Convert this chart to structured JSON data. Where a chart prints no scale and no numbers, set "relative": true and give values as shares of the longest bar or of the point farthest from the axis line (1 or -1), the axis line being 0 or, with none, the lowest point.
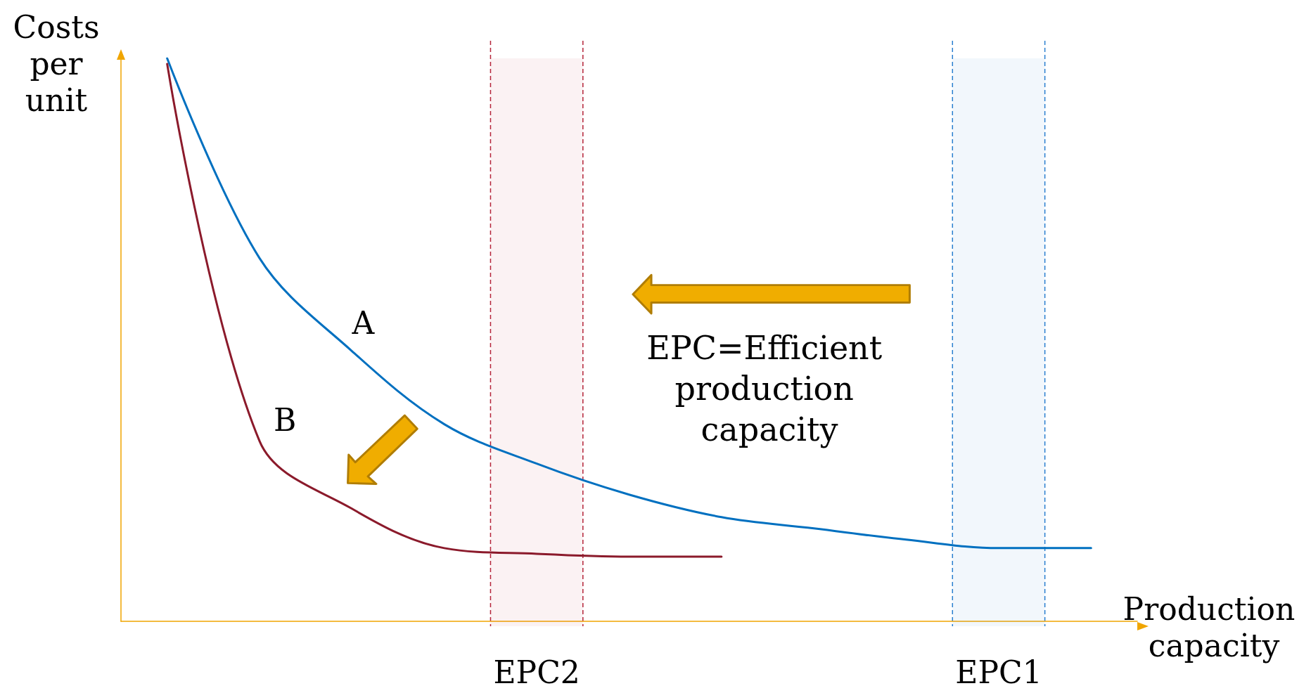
{
  "chart_data": {
    "type": "line",
    "relative": true,
    "xlabel": "Production capacity",
    "ylabel": "Costs per unit",
    "grid": false,
    "legend": false,
    "marker": "none",
    "line_style": "solid",
    "categories": [
      null,
      null,
      null,
      null,
      "EPC2",
      null,
      null,
      null,
      null,
      "EPC1",
      null
    ],
    "annotations": [
      "EPC=Efficient production capacity"
    ],
    "bands": [
      {
        "axis": "x",
        "from": "EPC2",
        "to": "EPC2",
        "color": "#b5253a"
      },
      {
        "axis": "x",
        "from": "EPC1",
        "to": "EPC1",
        "color": "#2a7fd0"
      }
    ],
    "series": [
      {
        "name": "A",
        "color": "#0070c0",
        "values": [
          1.0,
          0.645,
          0.48,
          0.35,
          0.28,
          0.225,
          0.185,
          0.165,
          0.145,
          0.13,
          0.13
        ]
      },
      {
        "name": "B",
        "color": "#8b1a2b",
        "values": [
          0.99,
          0.32,
          0.2,
          0.13,
          0.12,
          0.115,
          0.115,
          null,
          null,
          null,
          null
        ]
      }
    ]
  }
}
